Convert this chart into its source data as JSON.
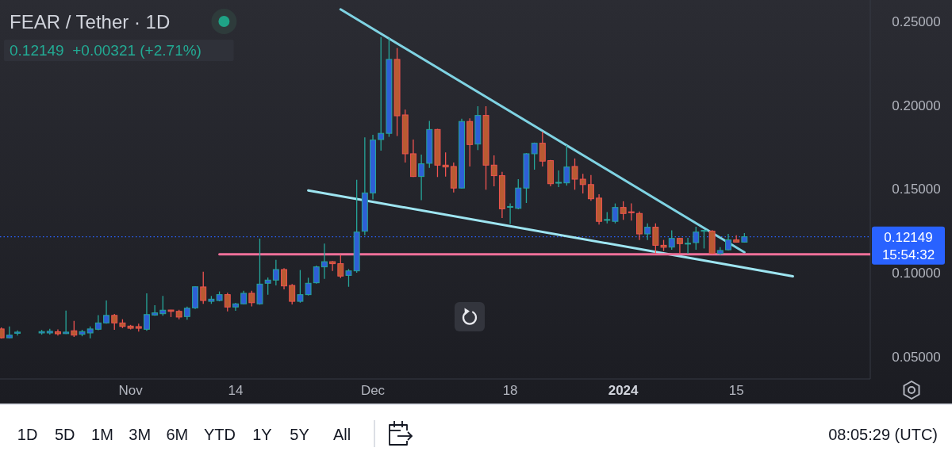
{
  "chart_data": {
    "type": "candlestick",
    "title": "FEAR / Tether · 1D",
    "subtitle": "0.12149  +0.00321 (+2.71%)",
    "x": [
      "2023-10-16",
      "2023-10-17",
      "2023-10-18",
      "2023-10-21",
      "2023-10-22",
      "2023-10-23",
      "2023-10-24",
      "2023-10-25",
      "2023-10-26",
      "2023-10-27",
      "2023-10-28",
      "2023-10-29",
      "2023-10-30",
      "2023-10-31",
      "2023-11-01",
      "2023-11-02",
      "2023-11-03",
      "2023-11-04",
      "2023-11-05",
      "2023-11-06",
      "2023-11-07",
      "2023-11-08",
      "2023-11-09",
      "2023-11-10",
      "2023-11-11",
      "2023-11-12",
      "2023-11-13",
      "2023-11-14",
      "2023-11-15",
      "2023-11-16",
      "2023-11-17",
      "2023-11-18",
      "2023-11-19",
      "2023-11-20",
      "2023-11-21",
      "2023-11-22",
      "2023-11-23",
      "2023-11-24",
      "2023-11-25",
      "2023-11-26",
      "2023-11-27",
      "2023-11-28",
      "2023-11-29",
      "2023-11-30",
      "2023-12-01",
      "2023-12-02",
      "2023-12-03",
      "2023-12-04",
      "2023-12-05",
      "2023-12-06",
      "2023-12-07",
      "2023-12-08",
      "2023-12-09",
      "2023-12-10",
      "2023-12-11",
      "2023-12-12",
      "2023-12-13",
      "2023-12-14",
      "2023-12-15",
      "2023-12-16",
      "2023-12-17",
      "2023-12-18",
      "2023-12-19",
      "2023-12-20",
      "2023-12-21",
      "2023-12-22",
      "2023-12-23",
      "2023-12-24",
      "2023-12-25",
      "2023-12-26",
      "2023-12-27",
      "2023-12-28",
      "2023-12-29",
      "2023-12-30",
      "2023-12-31",
      "2024-01-01",
      "2024-01-02",
      "2024-01-03",
      "2024-01-04",
      "2024-01-05",
      "2024-01-06",
      "2024-01-07",
      "2024-01-08",
      "2024-01-09",
      "2024-01-10",
      "2024-01-11",
      "2024-01-12",
      "2024-01-13",
      "2024-01-14",
      "2024-01-15",
      "2024-01-16"
    ],
    "ohlc": [
      [
        0.0664,
        0.0673,
        0.0607,
        0.0611
      ],
      [
        0.0611,
        0.0679,
        0.0609,
        0.0627
      ],
      [
        0.0638,
        0.0655,
        0.0625,
        0.0645
      ],
      [
        0.064,
        0.0658,
        0.063,
        0.0648
      ],
      [
        0.064,
        0.0665,
        0.063,
        0.065
      ],
      [
        0.0647,
        0.0661,
        0.0625,
        0.0635
      ],
      [
        0.0636,
        0.0774,
        0.0634,
        0.0645
      ],
      [
        0.0653,
        0.0712,
        0.0616,
        0.0627
      ],
      [
        0.0632,
        0.0659,
        0.062,
        0.0648
      ],
      [
        0.064,
        0.0679,
        0.0608,
        0.0664
      ],
      [
        0.0662,
        0.0746,
        0.0657,
        0.07
      ],
      [
        0.07,
        0.0834,
        0.0695,
        0.0745
      ],
      [
        0.0745,
        0.0753,
        0.0659,
        0.07
      ],
      [
        0.07,
        0.0722,
        0.0669,
        0.0679
      ],
      [
        0.0681,
        0.0688,
        0.0661,
        0.0668
      ],
      [
        0.0678,
        0.0695,
        0.0648,
        0.0668
      ],
      [
        0.0662,
        0.0877,
        0.0653,
        0.075
      ],
      [
        0.0747,
        0.0806,
        0.0743,
        0.076
      ],
      [
        0.0755,
        0.0861,
        0.0743,
        0.0776
      ],
      [
        0.0777,
        0.0778,
        0.0735,
        0.0769
      ],
      [
        0.0769,
        0.0779,
        0.0721,
        0.0735
      ],
      [
        0.0738,
        0.0797,
        0.0719,
        0.0788
      ],
      [
        0.079,
        0.0918,
        0.0783,
        0.0916
      ],
      [
        0.0915,
        0.1006,
        0.0814,
        0.0834
      ],
      [
        0.0829,
        0.0861,
        0.0814,
        0.0842
      ],
      [
        0.0834,
        0.0888,
        0.0829,
        0.0869
      ],
      [
        0.0869,
        0.088,
        0.0769,
        0.0795
      ],
      [
        0.0795,
        0.082,
        0.0772,
        0.0814
      ],
      [
        0.0814,
        0.0892,
        0.081,
        0.0877
      ],
      [
        0.0877,
        0.0892,
        0.0798,
        0.0821
      ],
      [
        0.0814,
        0.1204,
        0.0809,
        0.0932
      ],
      [
        0.0937,
        0.0972,
        0.0869,
        0.0956
      ],
      [
        0.0956,
        0.1077,
        0.0924,
        0.1019
      ],
      [
        0.1019,
        0.1027,
        0.09,
        0.0921
      ],
      [
        0.0924,
        0.0932,
        0.081,
        0.0829
      ],
      [
        0.0829,
        0.1016,
        0.0821,
        0.0869
      ],
      [
        0.0869,
        0.097,
        0.0864,
        0.0937
      ],
      [
        0.094,
        0.1043,
        0.0935,
        0.1035
      ],
      [
        0.1035,
        0.1174,
        0.0963,
        0.1066
      ],
      [
        0.1066,
        0.107,
        0.1011,
        0.1054
      ],
      [
        0.1054,
        0.1106,
        0.0968,
        0.098
      ],
      [
        0.0984,
        0.1022,
        0.0916,
        0.1011
      ],
      [
        0.1011,
        0.1556,
        0.1,
        0.1243
      ],
      [
        0.1248,
        0.1809,
        0.1224,
        0.1477
      ],
      [
        0.1477,
        0.1825,
        0.1438,
        0.1793
      ],
      [
        0.1796,
        0.2409,
        0.173,
        0.1833
      ],
      [
        0.1833,
        0.2401,
        0.1812,
        0.2275
      ],
      [
        0.2275,
        0.2343,
        0.1817,
        0.1938
      ],
      [
        0.1943,
        0.1975,
        0.1659,
        0.1711
      ],
      [
        0.1711,
        0.1796,
        0.1572,
        0.1575
      ],
      [
        0.1575,
        0.1706,
        0.1433,
        0.1651
      ],
      [
        0.1654,
        0.1907,
        0.1627,
        0.1856
      ],
      [
        0.1856,
        0.186,
        0.1572,
        0.1643
      ],
      [
        0.1643,
        0.1719,
        0.1575,
        0.1632
      ],
      [
        0.1635,
        0.1659,
        0.148,
        0.1506
      ],
      [
        0.1506,
        0.192,
        0.1503,
        0.1904
      ],
      [
        0.1904,
        0.1923,
        0.1635,
        0.1766
      ],
      [
        0.1769,
        0.1995,
        0.1733,
        0.194
      ],
      [
        0.194,
        0.1995,
        0.1496,
        0.1643
      ],
      [
        0.1643,
        0.1701,
        0.1517,
        0.158
      ],
      [
        0.158,
        0.1603,
        0.1327,
        0.1382
      ],
      [
        0.1391,
        0.1414,
        0.1291,
        0.1396
      ],
      [
        0.1385,
        0.1559,
        0.1379,
        0.1506
      ],
      [
        0.1506,
        0.1715,
        0.1417,
        0.1711
      ],
      [
        0.1711,
        0.1778,
        0.1616,
        0.1774
      ],
      [
        0.1774,
        0.1844,
        0.1635,
        0.1667
      ],
      [
        0.167,
        0.1674,
        0.1517,
        0.1532
      ],
      [
        0.1536,
        0.1611,
        0.1512,
        0.154
      ],
      [
        0.1537,
        0.1762,
        0.1521,
        0.1632
      ],
      [
        0.1635,
        0.1683,
        0.1496,
        0.1559
      ],
      [
        0.1559,
        0.1591,
        0.1474,
        0.1527
      ],
      [
        0.1527,
        0.1584,
        0.143,
        0.1442
      ],
      [
        0.1446,
        0.1469,
        0.1288,
        0.1307
      ],
      [
        0.1314,
        0.1363,
        0.1295,
        0.1318
      ],
      [
        0.1307,
        0.1414,
        0.1295,
        0.139
      ],
      [
        0.139,
        0.1427,
        0.1316,
        0.1354
      ],
      [
        0.1364,
        0.1414,
        0.1311,
        0.1359
      ],
      [
        0.1354,
        0.1366,
        0.1196,
        0.1232
      ],
      [
        0.1232,
        0.1295,
        0.1196,
        0.1272
      ],
      [
        0.1272,
        0.1295,
        0.1114,
        0.1164
      ],
      [
        0.1164,
        0.1196,
        0.113,
        0.1152
      ],
      [
        0.1153,
        0.1253,
        0.1137,
        0.1205
      ],
      [
        0.1205,
        0.1209,
        0.1114,
        0.1174
      ],
      [
        0.1172,
        0.1209,
        0.1114,
        0.1176
      ],
      [
        0.118,
        0.1275,
        0.1137,
        0.1243
      ],
      [
        0.1248,
        0.1255,
        0.1145,
        0.1253
      ],
      [
        0.1248,
        0.1255,
        0.1111,
        0.1114
      ],
      [
        0.1114,
        0.1153,
        0.1106,
        0.1133
      ],
      [
        0.1137,
        0.1232,
        0.1133,
        0.1196
      ],
      [
        0.1196,
        0.1224,
        0.118,
        0.11828
      ],
      [
        0.1183,
        0.1237,
        0.118,
        0.12149
      ]
    ],
    "colors": [
      "#b95b32",
      "#2e5fd6",
      "#2e5fd6",
      "#2e5fd6",
      "#2e5fd6",
      "#b95b32",
      "#2e5fd6",
      "#b95b32",
      "#2e5fd6",
      "#2e5fd6",
      "#2e5fd6",
      "#2e5fd6",
      "#b95b32",
      "#b95b32",
      "#b95b32",
      "#b95b32",
      "#2e5fd6",
      "#2e5fd6",
      "#2e5fd6",
      "#b95b32",
      "#b95b32",
      "#2e5fd6",
      "#2e5fd6",
      "#b95b32",
      "#2e5fd6",
      "#2e5fd6",
      "#b95b32",
      "#2e5fd6",
      "#2e5fd6",
      "#b95b32",
      "#2e5fd6",
      "#2e5fd6",
      "#2e5fd6",
      "#b95b32",
      "#b95b32",
      "#2e5fd6",
      "#2e5fd6",
      "#2e5fd6",
      "#2e5fd6",
      "#b95b32",
      "#b95b32",
      "#2e5fd6",
      "#2e5fd6",
      "#2e5fd6",
      "#2e5fd6",
      "#2e5fd6",
      "#2e5fd6",
      "#b95b32",
      "#b95b32",
      "#b95b32",
      "#2e5fd6",
      "#2e5fd6",
      "#b95b32",
      "#b95b32",
      "#b95b32",
      "#2e5fd6",
      "#b95b32",
      "#2e5fd6",
      "#b95b32",
      "#b95b32",
      "#b95b32",
      "#2e5fd6",
      "#2e5fd6",
      "#2e5fd6",
      "#2e5fd6",
      "#b95b32",
      "#b95b32",
      "#2e5fd6",
      "#2e5fd6",
      "#b95b32",
      "#b95b32",
      "#b95b32",
      "#b95b32",
      "#2e5fd6",
      "#2e5fd6",
      "#b95b32",
      "#b95b32",
      "#b95b32",
      "#2e5fd6",
      "#b95b32",
      "#b95b32",
      "#2e5fd6",
      "#b95b32",
      "#2e5fd6",
      "#2e5fd6",
      "#2e5fd6",
      "#b95b32",
      "#2e5fd6",
      "#2e5fd6",
      "#b95b32",
      "#2e5fd6"
    ],
    "series": [
      {
        "type": "line",
        "x": [
          "2023-11-27",
          "2024-01-16"
        ],
        "values": [
          0.2574,
          0.1122
        ],
        "color": "#7fd3e3"
      },
      {
        "type": "line",
        "x": [
          "2023-11-23",
          "2024-01-22"
        ],
        "values": [
          0.1492,
          0.0979
        ],
        "color": "#9ee5f1"
      },
      {
        "type": "line",
        "x": [
          "2023-11-12",
          "2024-01-31T14:00"
        ],
        "values": [
          0.111,
          0.111
        ],
        "color": "#f0709a"
      }
    ],
    "xlim": [
      "2023-10-15T20:00",
      "2024-01-31T14:00"
    ],
    "xticks": [
      {
        "value": "2023-11-01",
        "label": "Nov"
      },
      {
        "value": "2023-11-14",
        "label": "14"
      },
      {
        "value": "2023-12-01",
        "label": "Dec"
      },
      {
        "value": "2023-12-18",
        "label": "18"
      },
      {
        "value": "2024-01-01",
        "label": "2024"
      },
      {
        "value": "2024-01-15",
        "label": "15"
      }
    ],
    "ylim": [
      0.0365,
      0.263
    ],
    "yticks": [
      {
        "value": 0.05,
        "label": "0.05000"
      },
      {
        "value": 0.1,
        "label": "0.10000"
      },
      {
        "value": 0.15,
        "label": "0.15000"
      },
      {
        "value": 0.2,
        "label": "0.20000"
      },
      {
        "value": 0.25,
        "label": "0.25000"
      }
    ],
    "ref_lines": [
      {
        "axis": "y",
        "value": 0.12149,
        "label": "0.12149",
        "color": "#2962ff",
        "line_style": "dotted"
      }
    ],
    "annotations": [
      "15:54:32",
      "1D",
      "5D",
      "1M",
      "3M",
      "6M",
      "YTD",
      "1Y",
      "5Y",
      "All",
      "08:05:29 (UTC)"
    ]
  }
}
